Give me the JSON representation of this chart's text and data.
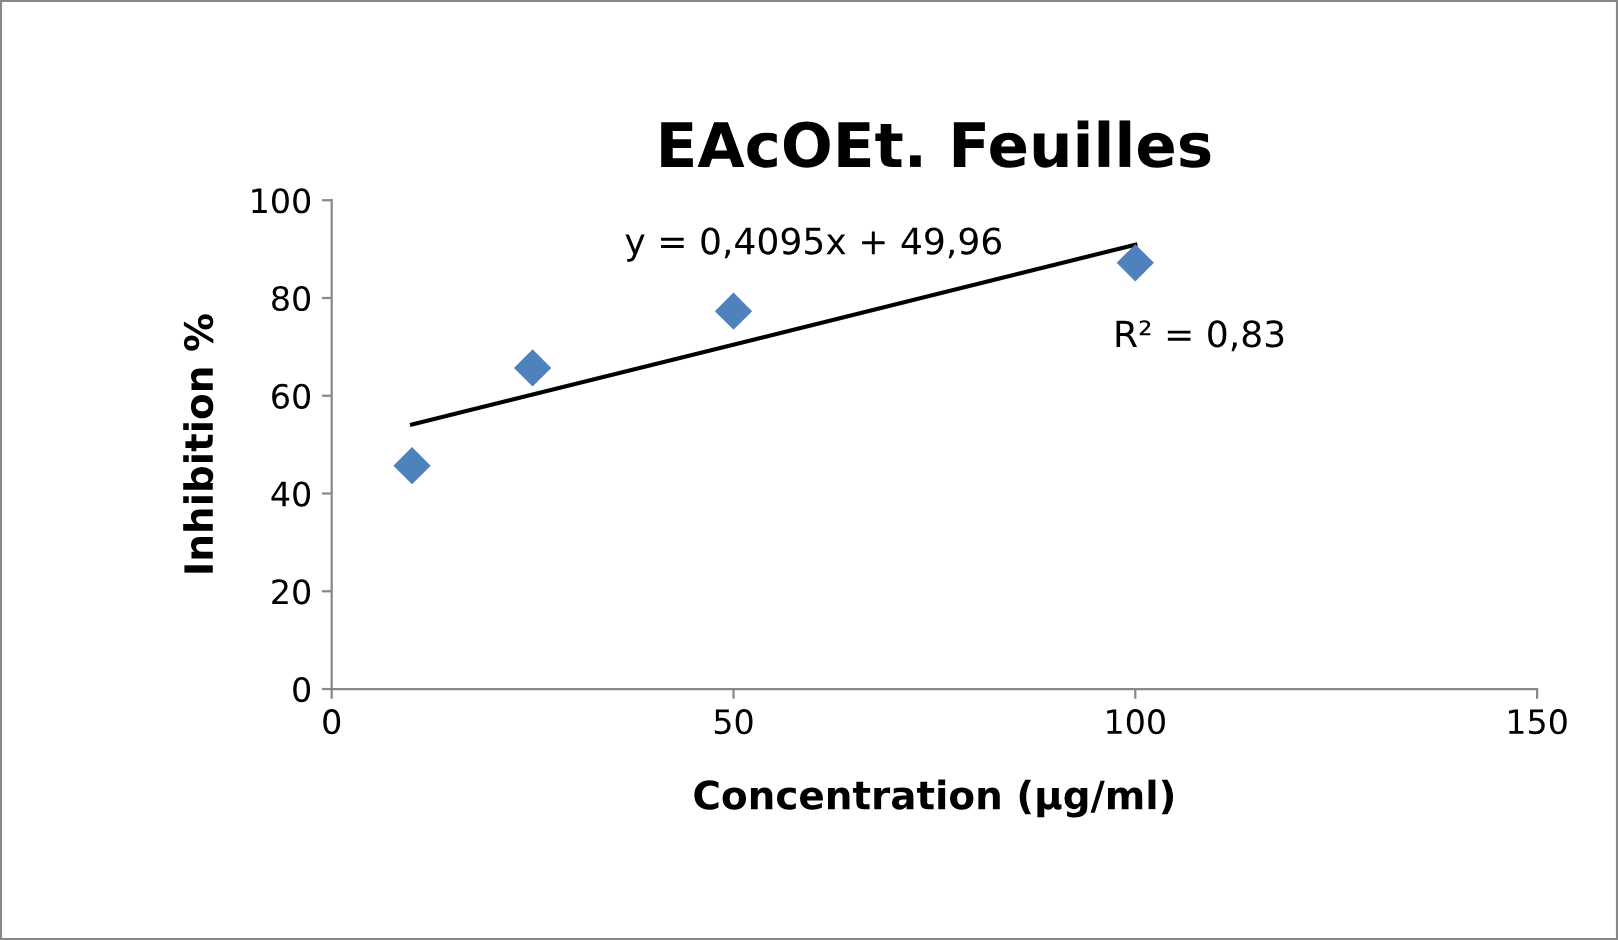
{
  "chart_data": {
    "type": "scatter",
    "title": "EAcOEt. Feuilles",
    "xlabel": "Concentration (µg/ml)",
    "ylabel": "Inhibition %",
    "x": [
      10,
      25,
      50,
      100
    ],
    "series": [
      {
        "color": "#4f81bd",
        "marker": "diamond",
        "values": [
          45.7,
          65.7,
          77.3,
          87.2
        ]
      },
      {
        "type": "line",
        "color": "#000000",
        "x": [
          10,
          100
        ],
        "values": [
          54.1,
          90.9
        ],
        "marker": "none",
        "line_style": "solid"
      }
    ],
    "annotations": [
      "y = 0,4095x + 49,96",
      "R² = 0,83"
    ],
    "xlim": [
      0,
      150
    ],
    "xticks": [
      0,
      50,
      100,
      150
    ],
    "ylim": [
      0,
      100
    ],
    "yticks": [
      0,
      20,
      40,
      60,
      80,
      100
    ],
    "grid": false,
    "legend": false
  }
}
